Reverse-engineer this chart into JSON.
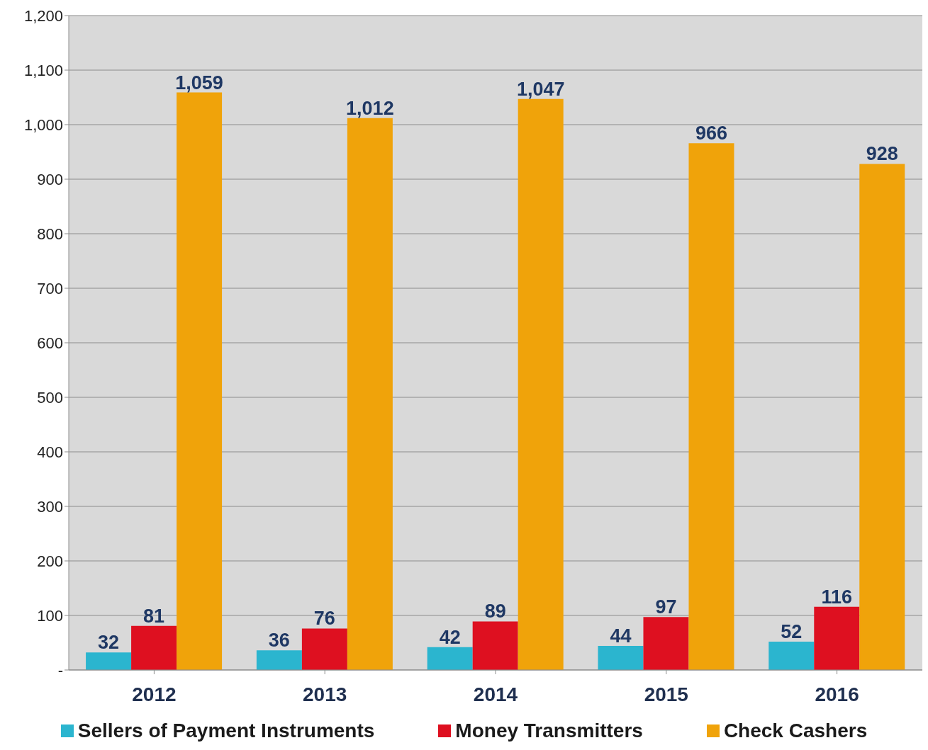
{
  "chart_data": {
    "type": "bar",
    "categories": [
      "2012",
      "2013",
      "2014",
      "2015",
      "2016"
    ],
    "series": [
      {
        "name": "Sellers of Payment Instruments",
        "color": "#2bb5cf",
        "values": [
          32,
          36,
          42,
          44,
          52
        ],
        "value_labels": [
          "32",
          "36",
          "42",
          "44",
          "52"
        ]
      },
      {
        "name": "Money Transmitters",
        "color": "#de1020",
        "values": [
          81,
          76,
          89,
          97,
          116
        ],
        "value_labels": [
          "81",
          "76",
          "89",
          "97",
          "116"
        ]
      },
      {
        "name": "Check Cashers",
        "color": "#f0a30a",
        "values": [
          1059,
          1012,
          1047,
          966,
          928
        ],
        "value_labels": [
          "1,059",
          "1,012",
          "1,047",
          "966",
          "928"
        ]
      }
    ],
    "ylim": [
      0,
      1200
    ],
    "yticks": [
      {
        "value": 0,
        "label": "-"
      },
      100,
      200,
      300,
      400,
      500,
      600,
      700,
      800,
      900,
      {
        "value": 1000,
        "label": "1,000"
      },
      {
        "value": 1100,
        "label": "1,100"
      },
      {
        "value": 1200,
        "label": "1,200"
      }
    ],
    "grid": "y",
    "legend": "bottom"
  }
}
